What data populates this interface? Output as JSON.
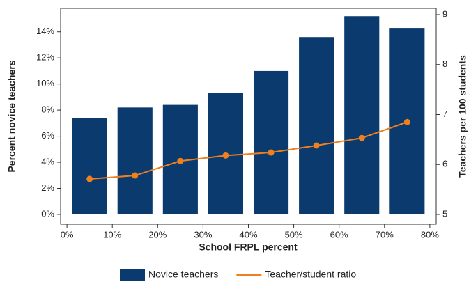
{
  "chart_data": {
    "type": "combo",
    "xlabel": "School FRPL percent",
    "ylabel": "Percent novice teachers",
    "y2label": "Teachers per 100 students",
    "x": [
      5,
      15,
      25,
      35,
      45,
      55,
      65,
      75
    ],
    "series": [
      {
        "name": "Novice teachers",
        "type": "bar",
        "color": "#0b3a6e",
        "values": [
          7.4,
          8.2,
          8.4,
          9.3,
          11.0,
          13.6,
          15.2,
          14.3
        ]
      },
      {
        "name": "Teacher/student ratio",
        "type": "line",
        "axis": "y2",
        "color": "#f0801e",
        "values": [
          5.71,
          5.78,
          6.07,
          6.18,
          6.24,
          6.38,
          6.53,
          6.85
        ]
      }
    ],
    "xlim": [
      -1.4,
      81.4
    ],
    "xticks": [
      {
        "value": 0,
        "label": "0%"
      },
      {
        "value": 10,
        "label": "10%"
      },
      {
        "value": 20,
        "label": "20%"
      },
      {
        "value": 30,
        "label": "30%"
      },
      {
        "value": 40,
        "label": "40%"
      },
      {
        "value": 50,
        "label": "50%"
      },
      {
        "value": 60,
        "label": "60%"
      },
      {
        "value": 70,
        "label": "70%"
      },
      {
        "value": 80,
        "label": "80%"
      }
    ],
    "ylim": [
      -0.75,
      15.8
    ],
    "yticks": [
      {
        "value": 0,
        "label": "0%"
      },
      {
        "value": 2,
        "label": "2%"
      },
      {
        "value": 4,
        "label": "4%"
      },
      {
        "value": 6,
        "label": "6%"
      },
      {
        "value": 8,
        "label": "8%"
      },
      {
        "value": 10,
        "label": "10%"
      },
      {
        "value": 12,
        "label": "12%"
      },
      {
        "value": 14,
        "label": "14%"
      }
    ],
    "y2lim": [
      4.805,
      9.125
    ],
    "y2ticks": [
      5,
      6,
      7,
      8,
      9
    ],
    "grid": false,
    "legend": "bottom"
  }
}
